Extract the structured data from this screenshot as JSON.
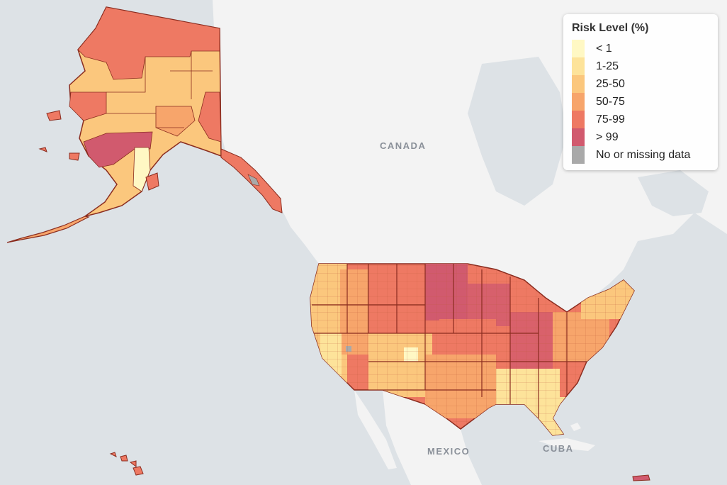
{
  "map": {
    "labels": {
      "canada": "CANADA",
      "mexico": "MEXICO",
      "cuba": "CUBA"
    },
    "colors": {
      "ocean": "#dde2e6",
      "land": "#f3f3f3",
      "border": "#8a2c1f"
    }
  },
  "legend": {
    "title": "Risk Level (%)",
    "items": [
      {
        "label": "< 1",
        "color": "#fff8c4"
      },
      {
        "label": "1-25",
        "color": "#fde39a"
      },
      {
        "label": "25-50",
        "color": "#fbc77d"
      },
      {
        "label": "50-75",
        "color": "#f7a56b"
      },
      {
        "label": "75-99",
        "color": "#ee7963"
      },
      {
        "label": "> 99",
        "color": "#d15a6e"
      },
      {
        "label": "No or missing data",
        "color": "#a9a9a9"
      }
    ]
  }
}
